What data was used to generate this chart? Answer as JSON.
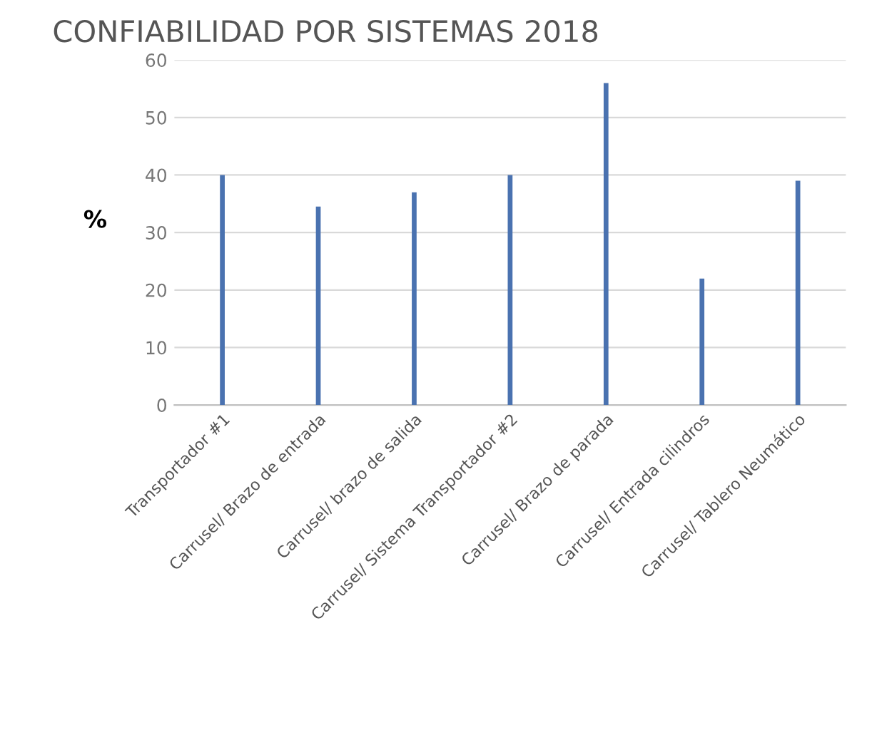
{
  "chart_data": {
    "type": "bar",
    "title": "CONFIABILIDAD POR SISTEMAS 2018",
    "ylabel": "%",
    "categories": [
      "Transportador #1",
      "Carrusel/ Brazo de entrada",
      "Carrusel/ brazo de salida",
      "Carrusel/ Sistema Transportador #2",
      "Carrusel/ Brazo de parada",
      "Carrusel/ Entrada cilindros",
      "Carrusel/ Tablero Neumático"
    ],
    "values": [
      40,
      34.5,
      37,
      40,
      56,
      22,
      39
    ],
    "color": "#4a72b0",
    "ylim": [
      0,
      60
    ],
    "yticks": [
      0,
      10,
      20,
      30,
      40,
      50,
      60
    ],
    "grid": "y",
    "legend": false
  }
}
